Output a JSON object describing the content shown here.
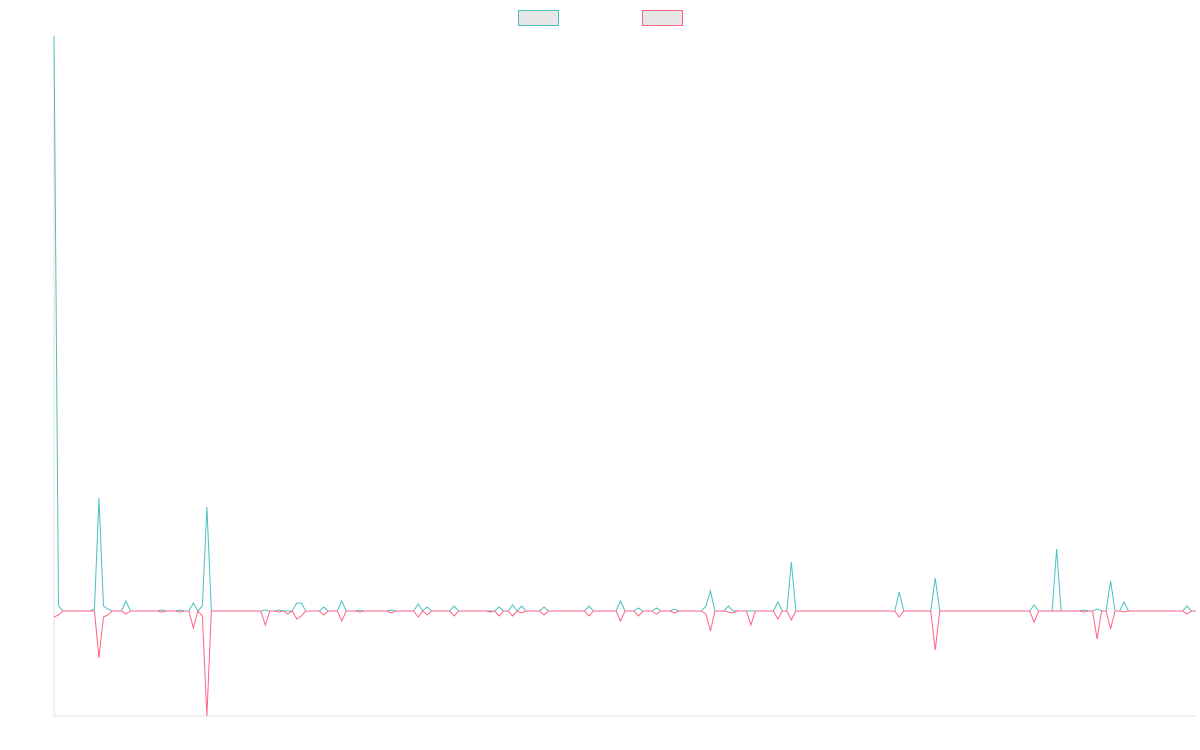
{
  "chart_data": {
    "type": "line",
    "categories": [
      null,
      null,
      null,
      null,
      null,
      null,
      null,
      null,
      null,
      null,
      null,
      null,
      null,
      null,
      null,
      null,
      null,
      null,
      null,
      null,
      null,
      null,
      null,
      null,
      null,
      null,
      null,
      null,
      null,
      null,
      null,
      null,
      null,
      null,
      null,
      null,
      null,
      null,
      null,
      null,
      null,
      null,
      null,
      null,
      null,
      null,
      null,
      null,
      null,
      null,
      null,
      null,
      null,
      null,
      null,
      null,
      null,
      null,
      null,
      null,
      null,
      null,
      null,
      null,
      null,
      null,
      null,
      null,
      null,
      null,
      null,
      null,
      null,
      null,
      null,
      null,
      null,
      null,
      null,
      null,
      null,
      null,
      null,
      null,
      null,
      null,
      null,
      null,
      null,
      null,
      null,
      null,
      null,
      null,
      null,
      null,
      null,
      null,
      null,
      null,
      null,
      null,
      null,
      null,
      null,
      null,
      null,
      null,
      null,
      null,
      null,
      null,
      null,
      null,
      null,
      null,
      null,
      null,
      null,
      null,
      null,
      null,
      null,
      null,
      null,
      null,
      null,
      null,
      null,
      null,
      null,
      null,
      null,
      null,
      null,
      null,
      null,
      null,
      null,
      null,
      null,
      null,
      null,
      null,
      null,
      null,
      null,
      null,
      null,
      null,
      null,
      null,
      null,
      null,
      null,
      null,
      null,
      null,
      null,
      null,
      null,
      null,
      null,
      null,
      null,
      null,
      null,
      null,
      null,
      null,
      null,
      null,
      null,
      null,
      null,
      null,
      null,
      null,
      null,
      null,
      null,
      null,
      null,
      null,
      null,
      null,
      null,
      null,
      null,
      null,
      null,
      null,
      null,
      null,
      null,
      null,
      null,
      null,
      null,
      null,
      null,
      null,
      null,
      null,
      null,
      null,
      null,
      null,
      null,
      null,
      null,
      null,
      null,
      null,
      null,
      null,
      null,
      null,
      null,
      null,
      null,
      null,
      null,
      null,
      null,
      null,
      null,
      null,
      null,
      null,
      null,
      null,
      null,
      null,
      null,
      null,
      null,
      null,
      null,
      null,
      null,
      null,
      null,
      null,
      null,
      null,
      null,
      null,
      null,
      null,
      null,
      null,
      null,
      null,
      null
    ],
    "series": [
      {
        "color": "#4bc0c0",
        "values": [
          575,
          5,
          0,
          0,
          0,
          0,
          0,
          0,
          0,
          2,
          113,
          5,
          2,
          0,
          0,
          0,
          10,
          0,
          0,
          0,
          0,
          0,
          0,
          0,
          1,
          0,
          0,
          0,
          1,
          0,
          0,
          8,
          0,
          5,
          104,
          0,
          0,
          0,
          0,
          0,
          0,
          0,
          0,
          0,
          0,
          0,
          0,
          1,
          0,
          0,
          1,
          0,
          0,
          0,
          8,
          8,
          0,
          0,
          0,
          0,
          4,
          0,
          0,
          0,
          10,
          0,
          0,
          0,
          1,
          0,
          0,
          0,
          0,
          0,
          0,
          1,
          0,
          0,
          0,
          0,
          0,
          7,
          0,
          4,
          0,
          0,
          0,
          0,
          0,
          5,
          0,
          0,
          0,
          0,
          0,
          0,
          0,
          0,
          0,
          4,
          0,
          0,
          6,
          0,
          5,
          0,
          0,
          0,
          0,
          4,
          0,
          0,
          0,
          0,
          0,
          0,
          0,
          0,
          0,
          5,
          0,
          0,
          0,
          0,
          0,
          0,
          10,
          0,
          0,
          0,
          3,
          0,
          0,
          0,
          3,
          0,
          0,
          0,
          2,
          0,
          0,
          0,
          0,
          0,
          0,
          5,
          20,
          0,
          0,
          0,
          5,
          0,
          0,
          0,
          0,
          0,
          0,
          0,
          0,
          0,
          0,
          9,
          0,
          0,
          49,
          0,
          0,
          0,
          0,
          0,
          0,
          0,
          0,
          0,
          0,
          0,
          0,
          0,
          0,
          0,
          0,
          0,
          0,
          0,
          0,
          0,
          0,
          0,
          19,
          0,
          0,
          0,
          0,
          0,
          0,
          0,
          33,
          0,
          0,
          0,
          0,
          0,
          0,
          0,
          0,
          0,
          0,
          0,
          0,
          0,
          0,
          0,
          0,
          0,
          0,
          0,
          0,
          0,
          6,
          0,
          0,
          0,
          0,
          62,
          0,
          0,
          0,
          0,
          0,
          1,
          0,
          0,
          2,
          0,
          0,
          30,
          0,
          0,
          9,
          0,
          0,
          0,
          0,
          0,
          0,
          0,
          0,
          0,
          0,
          0,
          0,
          0,
          5,
          0,
          0
        ]
      },
      {
        "color": "#ff6384",
        "values": [
          -6,
          -4,
          0,
          0,
          0,
          0,
          0,
          0,
          0,
          0,
          -47,
          -6,
          -4,
          0,
          0,
          0,
          -3,
          0,
          0,
          0,
          0,
          0,
          0,
          0,
          -1,
          0,
          0,
          0,
          -1,
          0,
          0,
          -17,
          0,
          -5,
          -105,
          0,
          0,
          0,
          0,
          0,
          0,
          0,
          0,
          0,
          0,
          0,
          0,
          -14,
          0,
          0,
          -1,
          0,
          -3,
          0,
          -8,
          -5,
          0,
          0,
          0,
          0,
          -4,
          0,
          0,
          0,
          -10,
          0,
          0,
          0,
          -1,
          0,
          0,
          0,
          0,
          0,
          0,
          -2,
          0,
          0,
          0,
          0,
          0,
          -6,
          0,
          -4,
          0,
          0,
          0,
          0,
          0,
          -5,
          0,
          0,
          0,
          0,
          0,
          0,
          0,
          -1,
          0,
          -5,
          0,
          0,
          -5,
          0,
          -2,
          0,
          0,
          0,
          0,
          -4,
          0,
          0,
          0,
          0,
          0,
          0,
          0,
          0,
          0,
          -5,
          0,
          0,
          0,
          0,
          0,
          0,
          -10,
          0,
          0,
          0,
          -5,
          0,
          0,
          0,
          -3,
          0,
          0,
          0,
          -2,
          0,
          0,
          0,
          0,
          0,
          0,
          -3,
          -20,
          0,
          0,
          0,
          -1,
          -2,
          0,
          0,
          0,
          -14,
          0,
          0,
          0,
          0,
          0,
          -8,
          0,
          0,
          -9,
          0,
          0,
          0,
          0,
          0,
          0,
          0,
          0,
          0,
          0,
          0,
          0,
          0,
          0,
          0,
          0,
          0,
          0,
          0,
          0,
          0,
          0,
          0,
          -6,
          0,
          0,
          0,
          0,
          0,
          0,
          0,
          -39,
          0,
          0,
          0,
          0,
          0,
          0,
          0,
          0,
          0,
          0,
          0,
          0,
          0,
          0,
          0,
          0,
          0,
          0,
          0,
          0,
          0,
          -11,
          0,
          0,
          0,
          0,
          0,
          0,
          0,
          0,
          0,
          0,
          -1,
          0,
          0,
          -28,
          0,
          0,
          -18,
          0,
          0,
          -1,
          0,
          0,
          0,
          0,
          0,
          0,
          0,
          0,
          0,
          0,
          0,
          0,
          0,
          -3,
          0,
          0
        ]
      }
    ],
    "ylim": [
      -105,
      575
    ]
  }
}
